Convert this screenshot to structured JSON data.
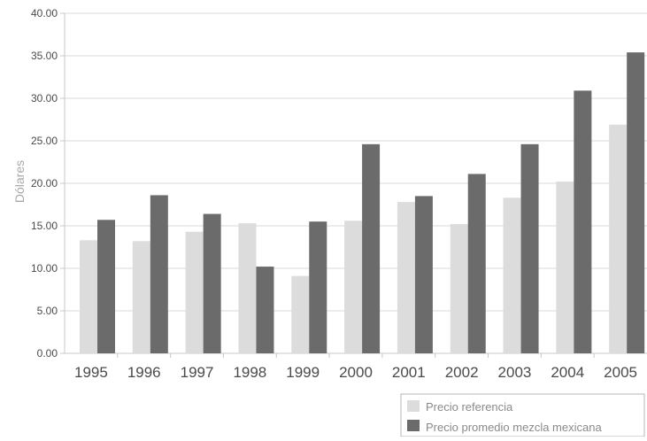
{
  "chart_data": {
    "type": "bar",
    "title": "",
    "xlabel": "",
    "ylabel": "Dólares",
    "ylim": [
      0,
      40
    ],
    "yticks": [
      "0.00",
      "5.00",
      "10.00",
      "15.00",
      "20.00",
      "25.00",
      "30.00",
      "35.00",
      "40.00"
    ],
    "grid": true,
    "legend_position": "bottom-right",
    "categories": [
      "1995",
      "1996",
      "1997",
      "1998",
      "1999",
      "2000",
      "2001",
      "2002",
      "2003",
      "2004",
      "2005"
    ],
    "series": [
      {
        "name": "Precio referencia",
        "color": "#dcdcdc",
        "values": [
          13.3,
          13.2,
          14.3,
          15.3,
          9.1,
          15.6,
          17.8,
          15.2,
          18.3,
          20.2,
          26.9
        ]
      },
      {
        "name": "Precio promedio mezcla mexicana",
        "color": "#6b6b6b",
        "values": [
          15.7,
          18.6,
          16.4,
          10.2,
          15.5,
          24.6,
          18.5,
          21.1,
          24.6,
          30.9,
          35.4
        ]
      }
    ]
  },
  "colors": {
    "axis": "#c8c8c8",
    "grid": "#d9d9d9",
    "tick_text": "#4a4a4a",
    "ylabel_text": "#a8a8a8",
    "legend_border": "#b5b5b5",
    "legend_text": "#8a8a8a"
  }
}
